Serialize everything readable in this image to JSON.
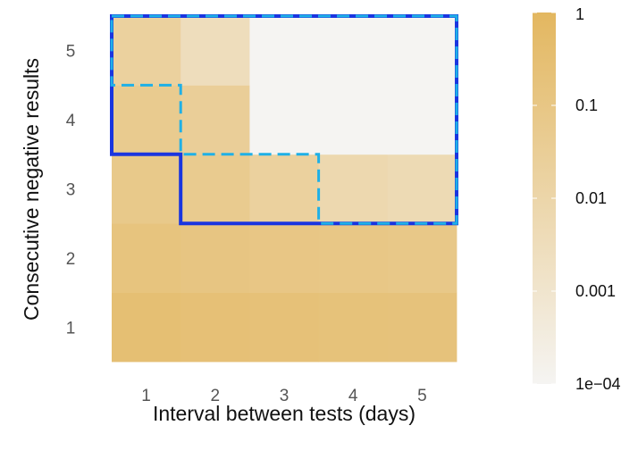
{
  "chart_data": {
    "type": "heatmap",
    "xlabel": "Interval between tests (days)",
    "ylabel": "Consecutive negative results",
    "x": [
      1,
      2,
      3,
      4,
      5
    ],
    "y": [
      1,
      2,
      3,
      4,
      5
    ],
    "x_tick_labels": [
      "1",
      "2",
      "3",
      "4",
      "5"
    ],
    "y_tick_labels": [
      "1",
      "2",
      "3",
      "4",
      "5"
    ],
    "values": [
      [
        0.3,
        0.25,
        0.22,
        0.2,
        0.18
      ],
      [
        0.15,
        0.12,
        0.1,
        0.09,
        0.08
      ],
      [
        0.07,
        0.05,
        0.02,
        0.007,
        0.005
      ],
      [
        0.05,
        0.03,
        0.0001,
        0.0001,
        0.0001
      ],
      [
        0.02,
        0.003,
        0.0001,
        0.0001,
        0.0001
      ]
    ],
    "color_scale": {
      "type": "log",
      "min": 0.0001,
      "max": 1,
      "low_color": "#f5f4f2",
      "high_color": "#e3b760",
      "tick_values": [
        1,
        0.1,
        0.01,
        0.001,
        0.0001
      ],
      "tick_labels": [
        "1",
        "0.1",
        "0.01",
        "0.001",
        "1e−04"
      ]
    },
    "regions": [
      {
        "style": "solid",
        "color": "#1a35e0",
        "points": [
          [
            0.5,
            5.5
          ],
          [
            5.5,
            5.5
          ],
          [
            5.5,
            2.5
          ],
          [
            1.5,
            2.5
          ],
          [
            1.5,
            3.5
          ],
          [
            0.5,
            3.5
          ]
        ]
      },
      {
        "style": "dashed",
        "color": "#1fb0e6",
        "points": [
          [
            0.5,
            5.5
          ],
          [
            5.5,
            5.5
          ],
          [
            5.5,
            2.5
          ],
          [
            3.5,
            2.5
          ],
          [
            3.5,
            3.5
          ],
          [
            1.5,
            3.5
          ],
          [
            1.5,
            4.5
          ],
          [
            0.5,
            4.5
          ]
        ]
      }
    ]
  }
}
